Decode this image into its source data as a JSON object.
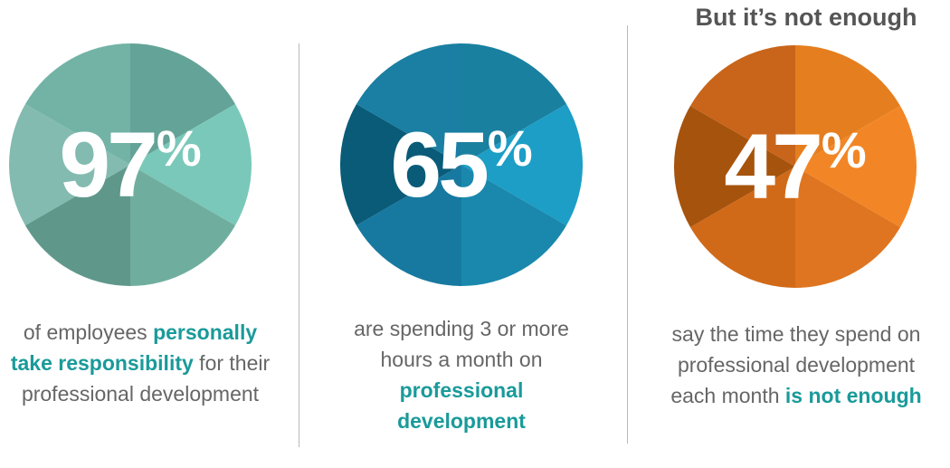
{
  "heading": "But it’s not enough",
  "stats": [
    {
      "value": "97",
      "unit": "%",
      "caption_parts": [
        "of employees ",
        "personally take responsibility",
        " for their professional development"
      ],
      "colors": [
        "#64a397",
        "#7ac8b9",
        "#6fae9f",
        "#5f988a",
        "#83bbb0",
        "#72b3a6"
      ]
    },
    {
      "value": "65",
      "unit": "%",
      "caption_parts": [
        "are spending 3 or more hours a month on ",
        "professional development",
        ""
      ],
      "colors": [
        "#1a80a0",
        "#1c9ec6",
        "#1a88ad",
        "#1779a0",
        "#095b78",
        "#1a7fa2"
      ]
    },
    {
      "value": "47",
      "unit": "%",
      "caption_parts": [
        "say the time they spend on professional development each month ",
        "is not enough",
        ""
      ],
      "colors": [
        "#e57e1f",
        "#f28626",
        "#df7520",
        "#d06a19",
        "#a6530d",
        "#c8651a"
      ]
    }
  ]
}
